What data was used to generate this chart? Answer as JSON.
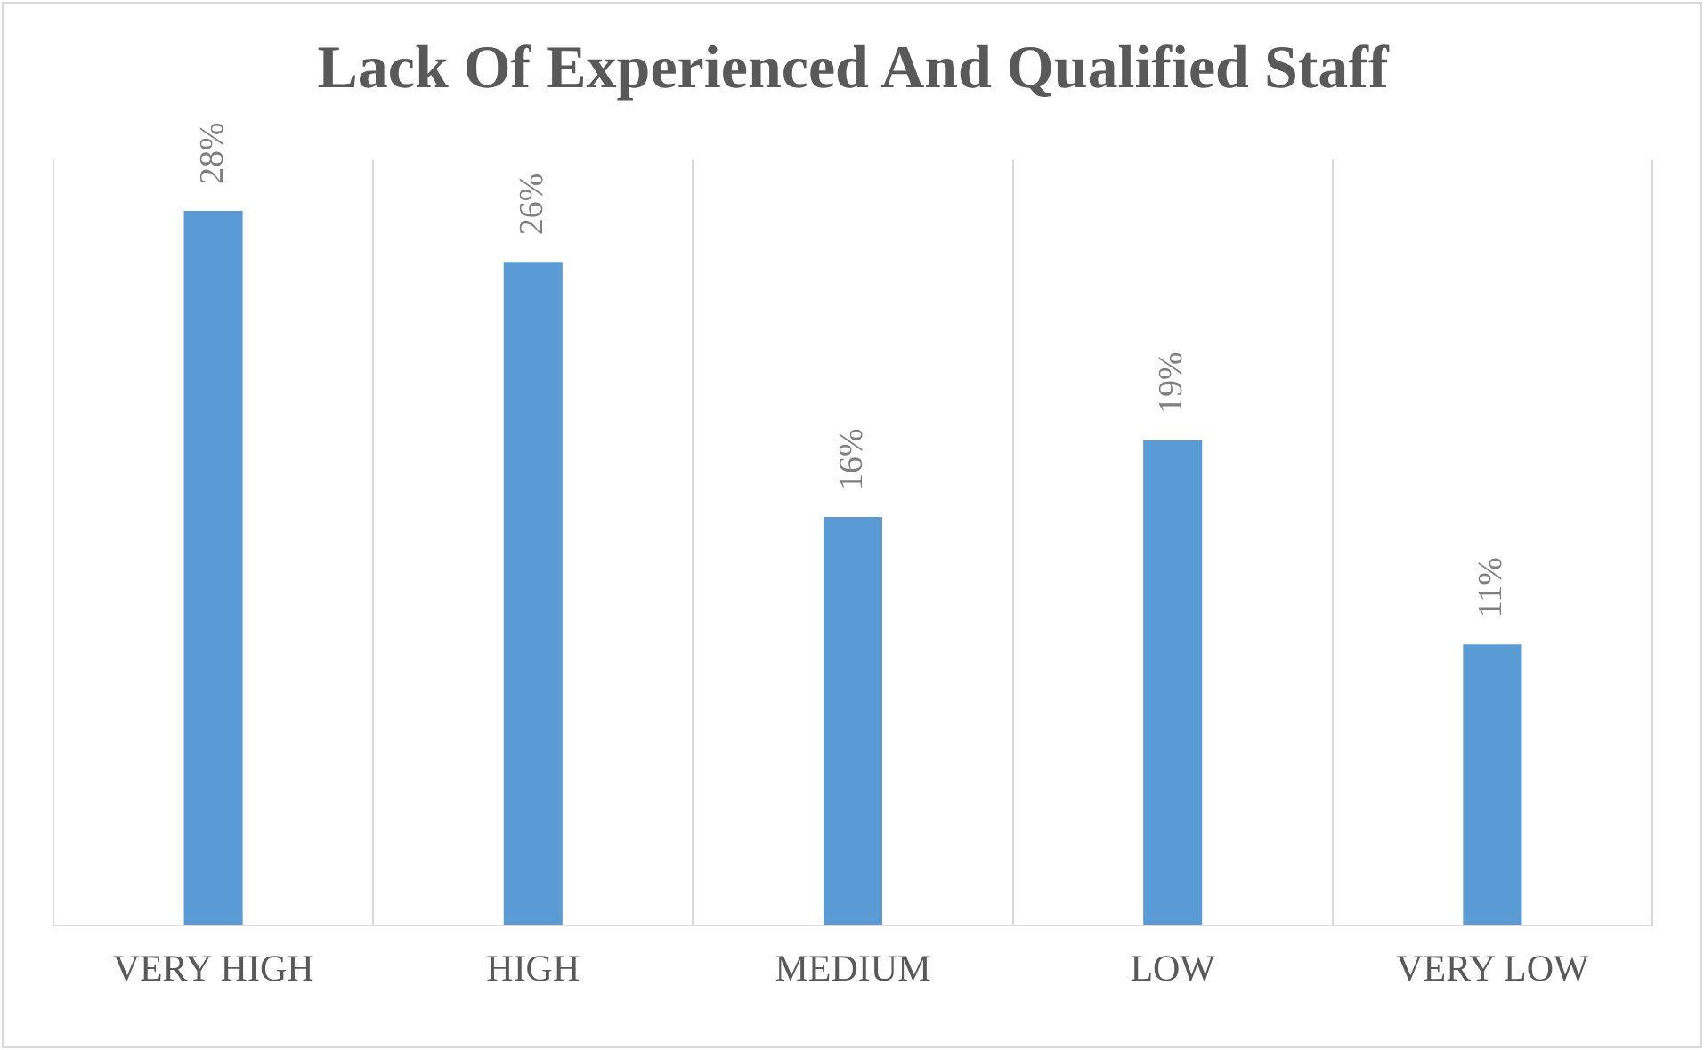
{
  "chart_data": {
    "type": "bar",
    "title": "Lack Of Experienced And Qualified Staff",
    "categories": [
      "VERY HIGH",
      "HIGH",
      "MEDIUM",
      "LOW",
      "VERY LOW"
    ],
    "values": [
      28,
      26,
      16,
      19,
      11
    ],
    "value_labels": [
      "28%",
      "26%",
      "16%",
      "19%",
      "11%"
    ],
    "color": "#5b9bd5",
    "ylim": [
      0,
      30
    ],
    "grid": "x",
    "tick_labels": "x"
  }
}
